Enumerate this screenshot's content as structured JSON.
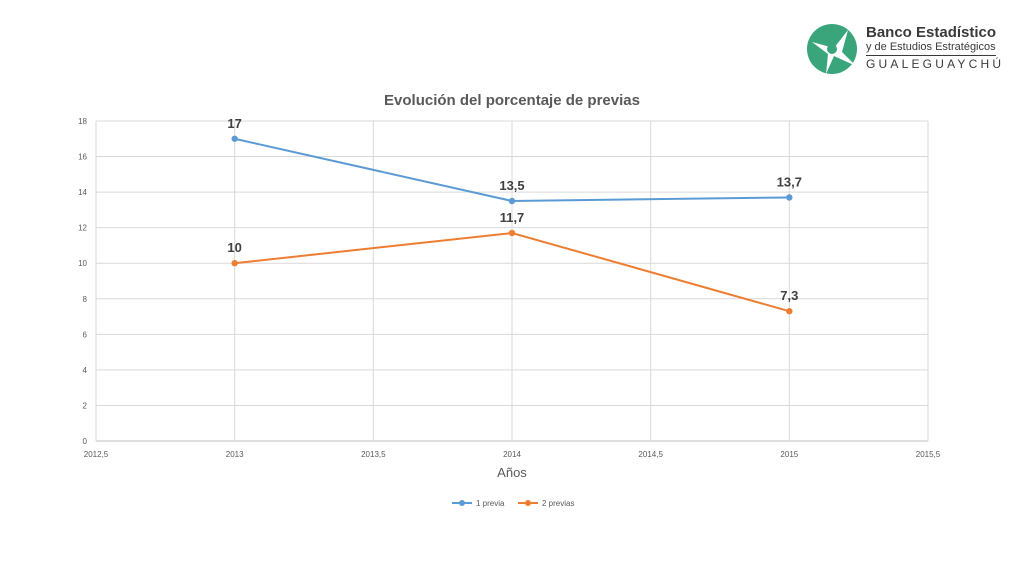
{
  "logo": {
    "line1": "Banco Estadístico",
    "line2": "y de Estudios Estratégicos",
    "line3": "GUALEGUAYCHÚ",
    "color": "#3aa57a",
    "icon": "stylized-bird-in-circle-logo-icon"
  },
  "chart_data": {
    "type": "scatter",
    "title": "Evolución del porcentaje de previas",
    "xlabel": "Años",
    "ylabel": "",
    "xlim": [
      2012.5,
      2015.5
    ],
    "ylim": [
      0,
      18
    ],
    "x_ticks": [
      "2012,5",
      "2013",
      "2013,5",
      "2014",
      "2014,5",
      "2015",
      "2015,5"
    ],
    "y_ticks": [
      "0",
      "2",
      "4",
      "6",
      "8",
      "10",
      "12",
      "14",
      "16",
      "18"
    ],
    "grid": true,
    "legend_position": "bottom",
    "series": [
      {
        "name": "1 previa",
        "color": "#5b9bd5",
        "x": [
          2013,
          2014,
          2015
        ],
        "y": [
          17,
          13.5,
          13.7
        ],
        "labels": [
          "17",
          "13,5",
          "13,7"
        ]
      },
      {
        "name": "2 previas",
        "color": "#ed7d31",
        "x": [
          2013,
          2014,
          2015
        ],
        "y": [
          10,
          11.7,
          7.3
        ],
        "labels": [
          "10",
          "11,7",
          "7,3"
        ]
      }
    ]
  }
}
